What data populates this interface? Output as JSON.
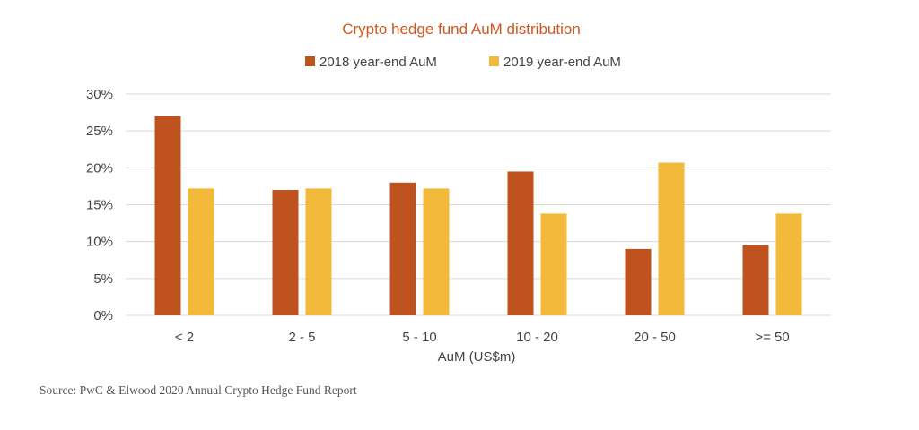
{
  "chart_data": {
    "type": "bar",
    "title": "Crypto hedge fund AuM distribution",
    "xlabel": "AuM (US$m)",
    "ylabel": "",
    "categories": [
      "< 2",
      "2 - 5",
      "5 - 10",
      "10 - 20",
      "20 - 50",
      ">= 50"
    ],
    "series": [
      {
        "name": "2018 year-end AuM",
        "values": [
          27,
          17,
          18,
          19.5,
          9,
          9.5
        ]
      },
      {
        "name": "2019 year-end AuM",
        "values": [
          17.2,
          17.2,
          17.2,
          13.8,
          20.7,
          13.8
        ]
      }
    ],
    "ylim": [
      0,
      30
    ],
    "yticks": [
      "0%",
      "5%",
      "10%",
      "15%",
      "20%",
      "25%",
      "30%"
    ],
    "grid": true,
    "legend": "top-center"
  },
  "colors": {
    "series_2018": "#BF5320",
    "series_2019": "#F2B93B",
    "title": "#D0581F",
    "grid": "#D9D9D9"
  },
  "source": "Source: PwC & Elwood 2020 Annual Crypto Hedge Fund Report"
}
